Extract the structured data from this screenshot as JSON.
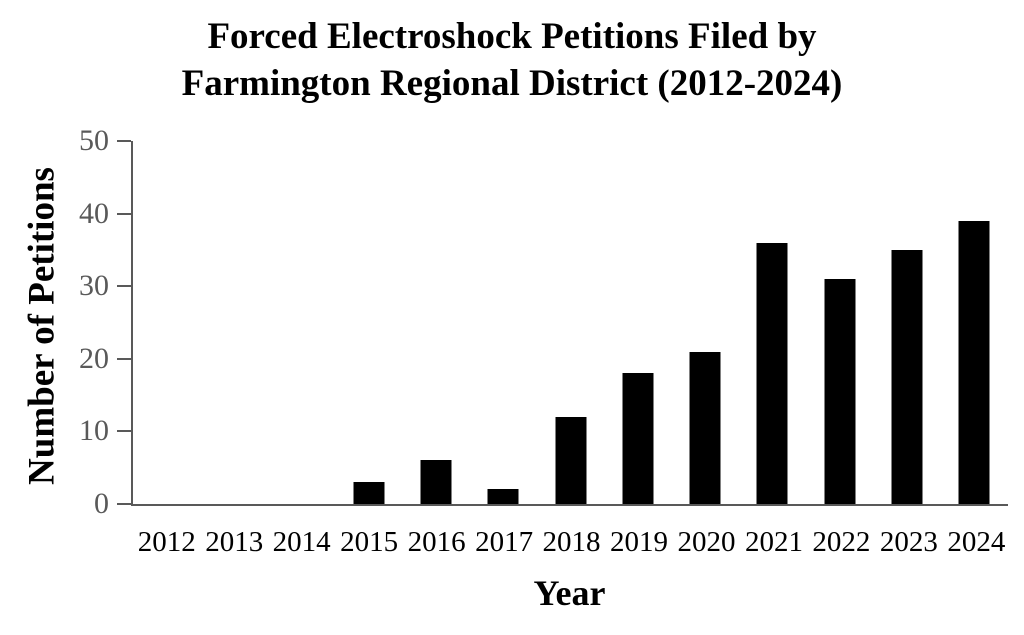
{
  "title": {
    "line1": "Forced Electroshock Petitions Filed by",
    "line2": "Farmington Regional District (2012-2024)"
  },
  "chart_data": {
    "type": "bar",
    "title": "Forced Electroshock Petitions Filed by Farmington Regional District (2012-2024)",
    "categories": [
      "2012",
      "2013",
      "2014",
      "2015",
      "2016",
      "2017",
      "2018",
      "2019",
      "2020",
      "2021",
      "2022",
      "2023",
      "2024"
    ],
    "values": [
      0,
      0,
      0,
      3,
      6,
      2,
      12,
      18,
      21,
      36,
      31,
      35,
      39
    ],
    "xlabel": "Year",
    "ylabel": "Number of Petitions",
    "ylim": [
      0,
      50
    ],
    "yticks": [
      0,
      10,
      20,
      30,
      40,
      50
    ],
    "grid": false,
    "legend": false,
    "bar_color": "#000000",
    "axis_color": "#595959",
    "tick_label_color": "#595959",
    "text_color": "#000000",
    "background_color": "#ffffff"
  }
}
